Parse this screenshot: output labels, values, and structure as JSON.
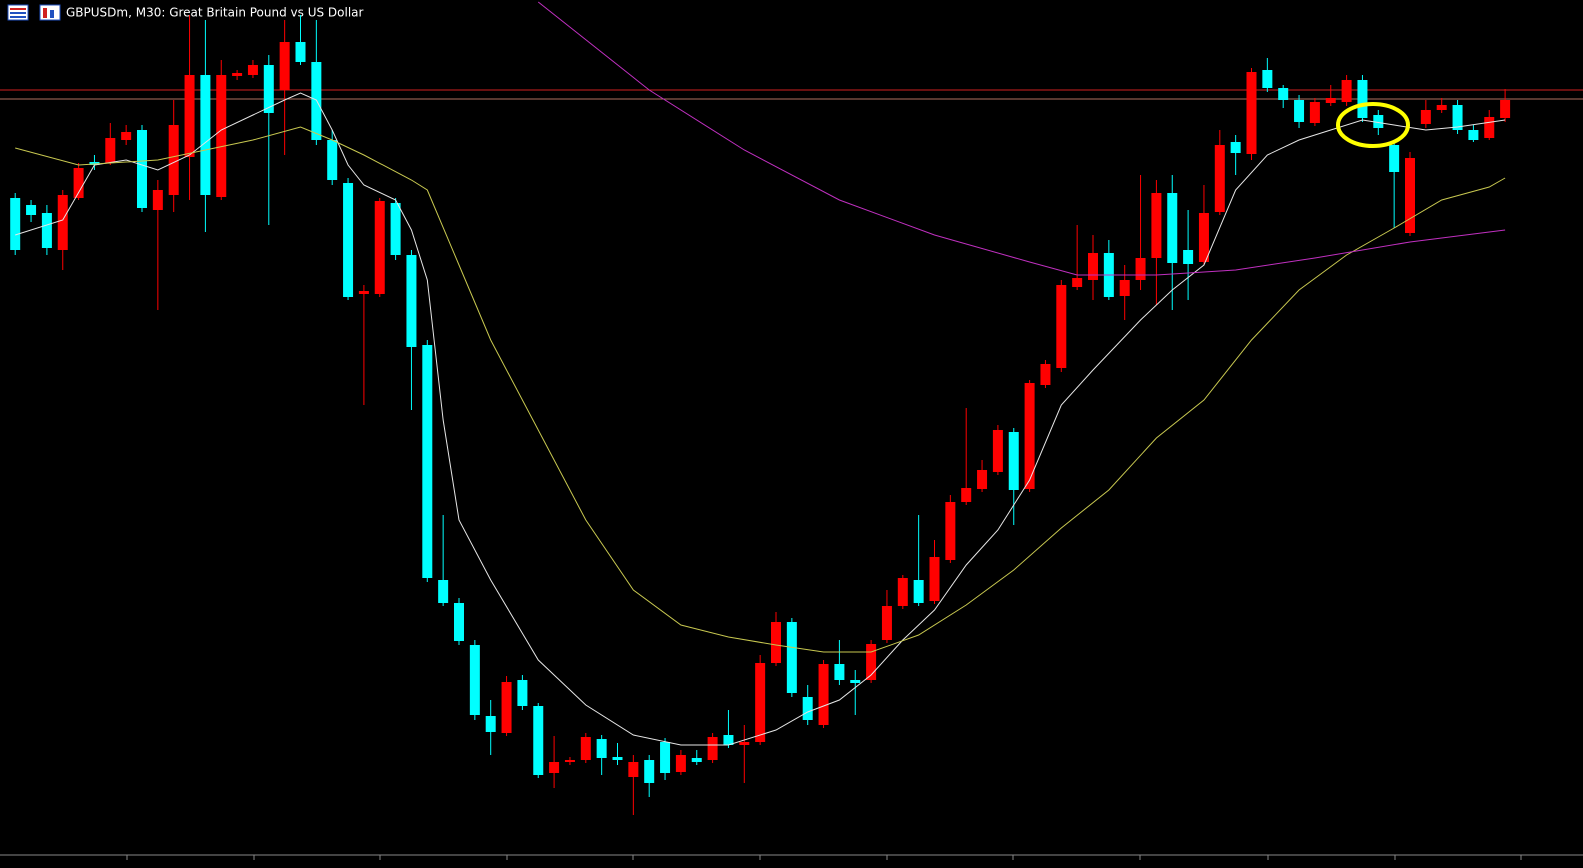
{
  "chart_data": {
    "type": "candlestick",
    "title": "GBPUSDm, M30:  Great Britain Pound vs US Dollar",
    "ylim": [
      0,
      868
    ],
    "up_color": "#ff0000",
    "down_color": "#00ffff",
    "ohlc": [
      [
        670,
        675,
        613,
        618
      ],
      [
        663,
        668,
        646,
        653
      ],
      [
        655,
        663,
        613,
        620
      ],
      [
        618,
        678,
        598,
        673
      ],
      [
        670,
        705,
        668,
        700
      ],
      [
        706,
        713,
        698,
        703
      ],
      [
        705,
        745,
        703,
        730
      ],
      [
        728,
        743,
        723,
        736
      ],
      [
        738,
        743,
        656,
        660
      ],
      [
        658,
        688,
        558,
        678
      ],
      [
        673,
        768,
        656,
        743
      ],
      [
        711,
        853,
        668,
        793
      ],
      [
        793,
        848,
        636,
        673
      ],
      [
        671,
        808,
        668,
        793
      ],
      [
        792,
        798,
        788,
        795
      ],
      [
        793,
        808,
        790,
        803
      ],
      [
        803,
        813,
        643,
        755
      ],
      [
        778,
        848,
        713,
        826
      ],
      [
        826,
        853,
        803,
        806
      ],
      [
        806,
        848,
        723,
        728
      ],
      [
        728,
        738,
        683,
        688
      ],
      [
        685,
        690,
        568,
        571
      ],
      [
        574,
        583,
        463,
        577
      ],
      [
        574,
        670,
        571,
        667
      ],
      [
        665,
        670,
        608,
        613
      ],
      [
        613,
        618,
        458,
        521
      ],
      [
        523,
        528,
        286,
        290
      ],
      [
        288,
        353,
        262,
        265
      ],
      [
        265,
        270,
        223,
        227
      ],
      [
        223,
        228,
        148,
        153
      ],
      [
        152,
        168,
        113,
        136
      ],
      [
        135,
        192,
        132,
        186
      ],
      [
        188,
        193,
        158,
        162
      ],
      [
        162,
        165,
        90,
        93
      ],
      [
        95,
        132,
        80,
        106
      ],
      [
        106,
        111,
        103,
        108
      ],
      [
        108,
        135,
        105,
        131
      ],
      [
        129,
        133,
        93,
        110
      ],
      [
        111,
        125,
        103,
        108
      ],
      [
        91,
        113,
        53,
        106
      ],
      [
        108,
        113,
        71,
        85
      ],
      [
        126,
        130,
        88,
        95
      ],
      [
        96,
        118,
        93,
        113
      ],
      [
        110,
        118,
        103,
        106
      ],
      [
        108,
        135,
        105,
        131
      ],
      [
        133,
        158,
        120,
        123
      ],
      [
        123,
        143,
        85,
        126
      ],
      [
        126,
        213,
        123,
        205
      ],
      [
        205,
        256,
        202,
        246
      ],
      [
        246,
        250,
        171,
        175
      ],
      [
        171,
        183,
        143,
        148
      ],
      [
        143,
        208,
        140,
        204
      ],
      [
        204,
        228,
        183,
        188
      ],
      [
        188,
        198,
        153,
        185
      ],
      [
        188,
        228,
        185,
        224
      ],
      [
        228,
        278,
        225,
        262
      ],
      [
        262,
        293,
        259,
        290
      ],
      [
        288,
        353,
        262,
        265
      ],
      [
        267,
        328,
        264,
        311
      ],
      [
        308,
        373,
        305,
        366
      ],
      [
        366,
        460,
        363,
        380
      ],
      [
        379,
        408,
        376,
        398
      ],
      [
        396,
        443,
        393,
        438
      ],
      [
        436,
        440,
        343,
        378
      ],
      [
        379,
        488,
        376,
        485
      ],
      [
        483,
        508,
        480,
        504
      ],
      [
        500,
        588,
        496,
        583
      ],
      [
        581,
        643,
        578,
        590
      ],
      [
        588,
        633,
        568,
        615
      ],
      [
        615,
        628,
        568,
        571
      ],
      [
        572,
        603,
        548,
        588
      ],
      [
        588,
        693,
        578,
        610
      ],
      [
        610,
        688,
        563,
        675
      ],
      [
        675,
        693,
        558,
        605
      ],
      [
        618,
        658,
        568,
        604
      ],
      [
        606,
        683,
        603,
        655
      ],
      [
        656,
        738,
        653,
        723
      ],
      [
        726,
        733,
        693,
        715
      ],
      [
        714,
        800,
        708,
        796
      ],
      [
        798,
        810,
        776,
        780
      ],
      [
        780,
        783,
        760,
        768
      ],
      [
        768,
        773,
        740,
        746
      ],
      [
        745,
        770,
        742,
        766
      ],
      [
        765,
        783,
        762,
        770
      ],
      [
        766,
        793,
        762,
        788
      ],
      [
        788,
        793,
        746,
        750
      ],
      [
        753,
        758,
        733,
        740
      ],
      [
        723,
        728,
        640,
        696
      ],
      [
        635,
        716,
        632,
        710
      ],
      [
        744,
        768,
        740,
        758
      ],
      [
        758,
        770,
        755,
        763
      ],
      [
        763,
        768,
        734,
        738
      ],
      [
        738,
        743,
        726,
        728
      ],
      [
        730,
        758,
        728,
        751
      ],
      [
        750,
        779,
        746,
        768
      ]
    ],
    "moving_averages": [
      {
        "color": "#e6e6e6",
        "x": [
          0,
          3,
          5,
          7,
          9,
          11,
          13,
          15,
          17,
          18,
          19,
          20,
          21,
          22,
          24,
          25,
          26,
          27,
          28,
          30,
          33,
          36,
          39,
          42,
          45,
          48,
          50,
          52,
          54,
          56,
          58,
          60,
          62,
          64,
          66,
          68,
          71,
          73,
          75,
          77,
          79,
          81,
          83,
          85,
          87,
          89,
          91,
          94
        ],
        "values": [
          633,
          648,
          703,
          708,
          698,
          713,
          738,
          753,
          768,
          775,
          768,
          738,
          703,
          683,
          668,
          638,
          588,
          448,
          348,
          288,
          208,
          163,
          133,
          123,
          123,
          138,
          156,
          168,
          193,
          228,
          258,
          303,
          338,
          388,
          463,
          498,
          548,
          578,
          603,
          678,
          713,
          728,
          738,
          748,
          743,
          738,
          741,
          748
        ]
      },
      {
        "color": "#c8c850",
        "x": [
          0,
          4,
          6,
          9,
          12,
          15,
          18,
          20,
          22,
          25,
          26,
          28,
          30,
          33,
          36,
          39,
          42,
          45,
          48,
          51,
          54,
          57,
          60,
          63,
          66,
          69,
          72,
          75,
          78,
          81,
          84,
          87,
          90,
          93,
          94
        ],
        "values": [
          720,
          703,
          705,
          708,
          718,
          728,
          741,
          728,
          713,
          688,
          678,
          603,
          528,
          438,
          348,
          278,
          243,
          231,
          223,
          216,
          216,
          233,
          263,
          298,
          340,
          378,
          430,
          468,
          528,
          578,
          613,
          640,
          668,
          681,
          690
        ]
      },
      {
        "color": "#c030c0",
        "x": [
          33,
          40,
          46,
          52,
          58,
          64,
          67,
          72,
          77,
          82,
          88,
          94
        ],
        "values": [
          866,
          778,
          718,
          668,
          633,
          606,
          593,
          593,
          598,
          610,
          626,
          638
        ]
      }
    ],
    "levels": [
      {
        "value": 778,
        "color": "#d02020"
      },
      {
        "value": 769,
        "color": "#b07060"
      }
    ]
  }
}
